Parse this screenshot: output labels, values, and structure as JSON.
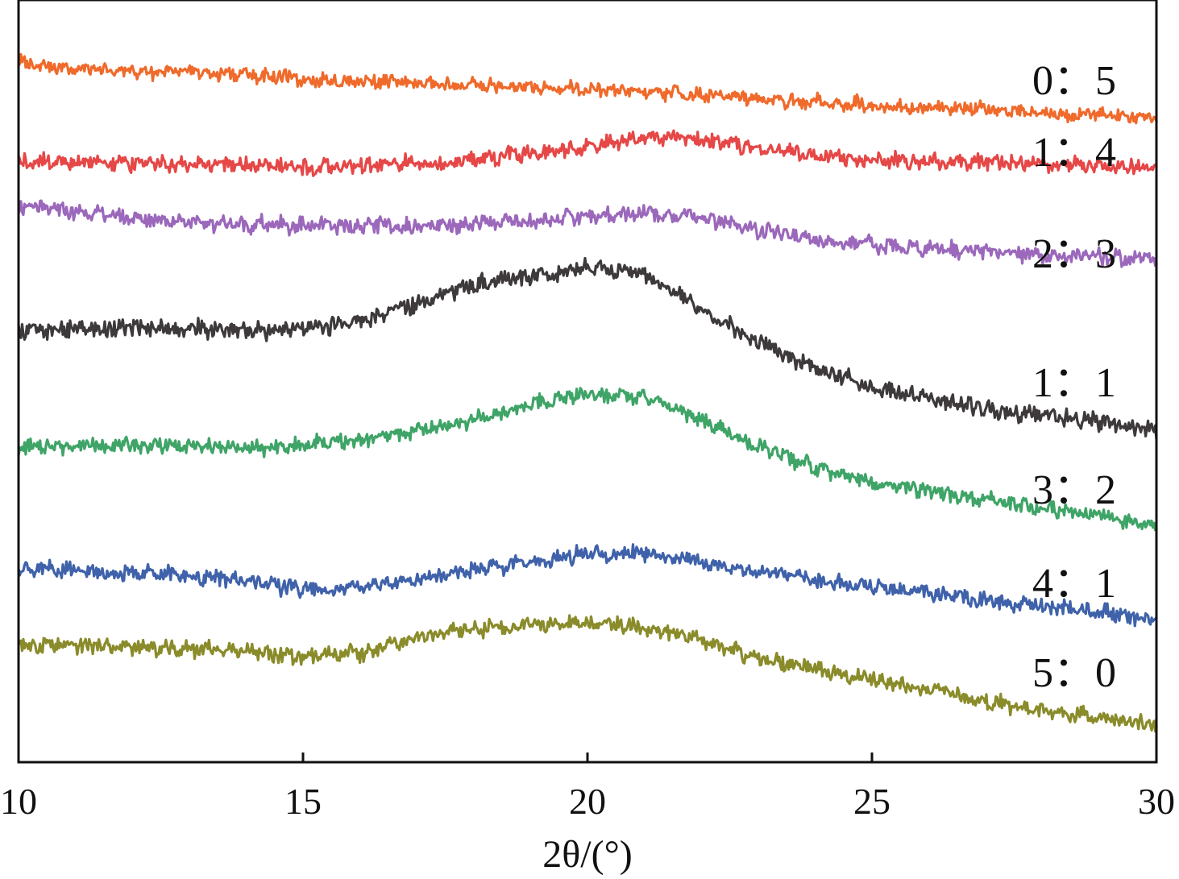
{
  "chart_data": {
    "type": "line",
    "title": "",
    "xlabel": "2θ/(°)",
    "ylabel": "",
    "xlim": [
      10,
      30
    ],
    "ylim": [
      0,
      100
    ],
    "grid": false,
    "legend_placement": "labels at right end of each curve",
    "x_ticks": [
      10,
      15,
      20,
      25,
      30
    ],
    "x_tick_labels": [
      "10",
      "15",
      "20",
      "25",
      "30"
    ],
    "series": [
      {
        "name": "0：5",
        "color": "#ef6a2b",
        "x": [
          10,
          11,
          12,
          13,
          14,
          15,
          16,
          17,
          18,
          19,
          20,
          21,
          22,
          23,
          24,
          25,
          26,
          27,
          28,
          29,
          30
        ],
        "values": [
          91.8,
          91.0,
          90.6,
          90.5,
          90.2,
          89.7,
          89.4,
          89.1,
          88.8,
          88.5,
          88.4,
          88.0,
          87.5,
          87.1,
          86.7,
          86.2,
          85.9,
          85.5,
          85.2,
          84.9,
          84.7
        ]
      },
      {
        "name": "1：4",
        "color": "#e64747",
        "x": [
          10,
          11,
          12,
          13,
          14,
          15,
          16,
          17,
          18,
          19,
          20,
          21,
          22,
          23,
          24,
          25,
          26,
          27,
          28,
          29,
          30
        ],
        "values": [
          78.8,
          78.6,
          78.7,
          78.5,
          78.3,
          78.0,
          78.2,
          78.6,
          79.0,
          79.8,
          80.8,
          82.1,
          81.7,
          80.6,
          79.6,
          79.0,
          78.8,
          78.7,
          78.6,
          78.3,
          78.0
        ]
      },
      {
        "name": "2：3",
        "color": "#9b68bb",
        "x": [
          10,
          11,
          12,
          13,
          14,
          15,
          16,
          17,
          18,
          19,
          20,
          21,
          22,
          23,
          24,
          25,
          26,
          27,
          28,
          29,
          30
        ],
        "values": [
          72.8,
          72.1,
          71.5,
          70.9,
          70.6,
          70.4,
          70.3,
          70.4,
          70.7,
          71.0,
          71.6,
          72.0,
          71.5,
          69.9,
          68.5,
          67.9,
          67.4,
          67.0,
          66.6,
          66.2,
          65.9
        ]
      },
      {
        "name": "1：1",
        "color": "#3e3a3b",
        "x": [
          10,
          11,
          12,
          13,
          14,
          15,
          16,
          17,
          18,
          19,
          20,
          21,
          22,
          23,
          24,
          25,
          26,
          27,
          28,
          29,
          30
        ],
        "values": [
          56.6,
          56.8,
          57.0,
          56.9,
          56.7,
          56.8,
          57.9,
          60.3,
          62.6,
          63.8,
          64.8,
          64.1,
          59.4,
          55.0,
          51.8,
          49.2,
          47.6,
          46.3,
          45.5,
          44.7,
          43.5
        ]
      },
      {
        "name": "3：2",
        "color": "#3fa467",
        "x": [
          10,
          11,
          12,
          13,
          14,
          15,
          16,
          17,
          18,
          19,
          20,
          21,
          22,
          23,
          24,
          25,
          26,
          27,
          28,
          29,
          30
        ],
        "values": [
          41.3,
          41.5,
          41.6,
          41.4,
          41.2,
          41.5,
          42.3,
          43.4,
          44.9,
          46.9,
          48.4,
          47.8,
          44.8,
          41.3,
          38.7,
          36.8,
          35.6,
          34.4,
          33.4,
          32.3,
          31.0
        ]
      },
      {
        "name": "4：1",
        "color": "#3f62aa",
        "x": [
          10,
          11,
          12,
          13,
          14,
          15,
          16,
          17,
          18,
          19,
          20,
          21,
          22,
          23,
          24,
          25,
          26,
          27,
          28,
          29,
          30
        ],
        "values": [
          25.3,
          25.1,
          24.8,
          24.5,
          23.7,
          22.7,
          22.9,
          23.9,
          25.2,
          26.3,
          27.2,
          27.6,
          26.2,
          25.1,
          23.9,
          23.0,
          22.1,
          21.2,
          20.5,
          19.6,
          18.7
        ]
      },
      {
        "name": "5：0",
        "color": "#8a8b2a",
        "x": [
          10,
          11,
          12,
          13,
          14,
          15,
          16,
          17,
          18,
          19,
          20,
          21,
          22,
          23,
          24,
          25,
          26,
          27,
          28,
          29,
          30
        ],
        "values": [
          15.4,
          15.3,
          15.1,
          14.9,
          14.6,
          13.7,
          14.2,
          16.3,
          17.5,
          17.9,
          18.4,
          17.6,
          16.0,
          13.5,
          12.3,
          10.9,
          9.5,
          8.0,
          6.8,
          5.7,
          4.9
        ]
      }
    ]
  }
}
